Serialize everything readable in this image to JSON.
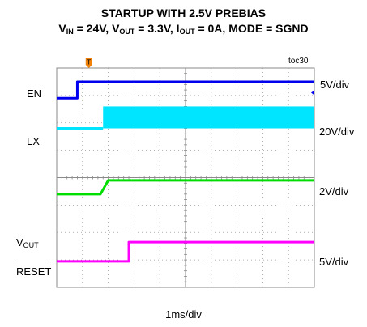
{
  "chart_data": {
    "type": "line",
    "title": "STARTUP WITH 2.5V PREBIAS",
    "subtitle": {
      "vin": "V",
      "vin_sub": "IN",
      "vin_val": " = 24V, ",
      "vout": "V",
      "vout_sub": "OUT",
      "vout_val": " = 3.3V, ",
      "iout": "I",
      "iout_sub": "OUT",
      "iout_val": " = 0A, MODE = SGND"
    },
    "figure_ref": "toc30",
    "xlabel": "1ms/div",
    "trigger_marker": "T",
    "x_divisions": 10,
    "y_divisions": 8,
    "grid": true,
    "channels": [
      {
        "name": "EN",
        "scale": "5V/div",
        "color": "#0000ee",
        "shape": "step",
        "x": [
          0.0,
          0.8,
          0.8,
          10.0
        ],
        "y": [
          6.9,
          6.9,
          7.5,
          7.5
        ]
      },
      {
        "name": "LX",
        "scale": "20V/div",
        "color": "#00e5ff",
        "shape": "switching",
        "low_level": 5.8,
        "high_level": 6.6,
        "switch_start": 1.8,
        "x_end": 10.0
      },
      {
        "name": "VOUT",
        "label": "V",
        "label_sub": "OUT",
        "scale": "2V/div",
        "color": "#00dd00",
        "shape": "ramp",
        "x": [
          0.0,
          1.7,
          2.0,
          10.0
        ],
        "y": [
          3.4,
          3.4,
          3.9,
          3.9
        ]
      },
      {
        "name": "RESET",
        "label": "RESET",
        "scale": "5V/div",
        "color": "#ff00ff",
        "shape": "step",
        "x": [
          0.0,
          2.8,
          2.8,
          10.0
        ],
        "y": [
          0.95,
          0.95,
          1.65,
          1.65
        ]
      }
    ]
  }
}
